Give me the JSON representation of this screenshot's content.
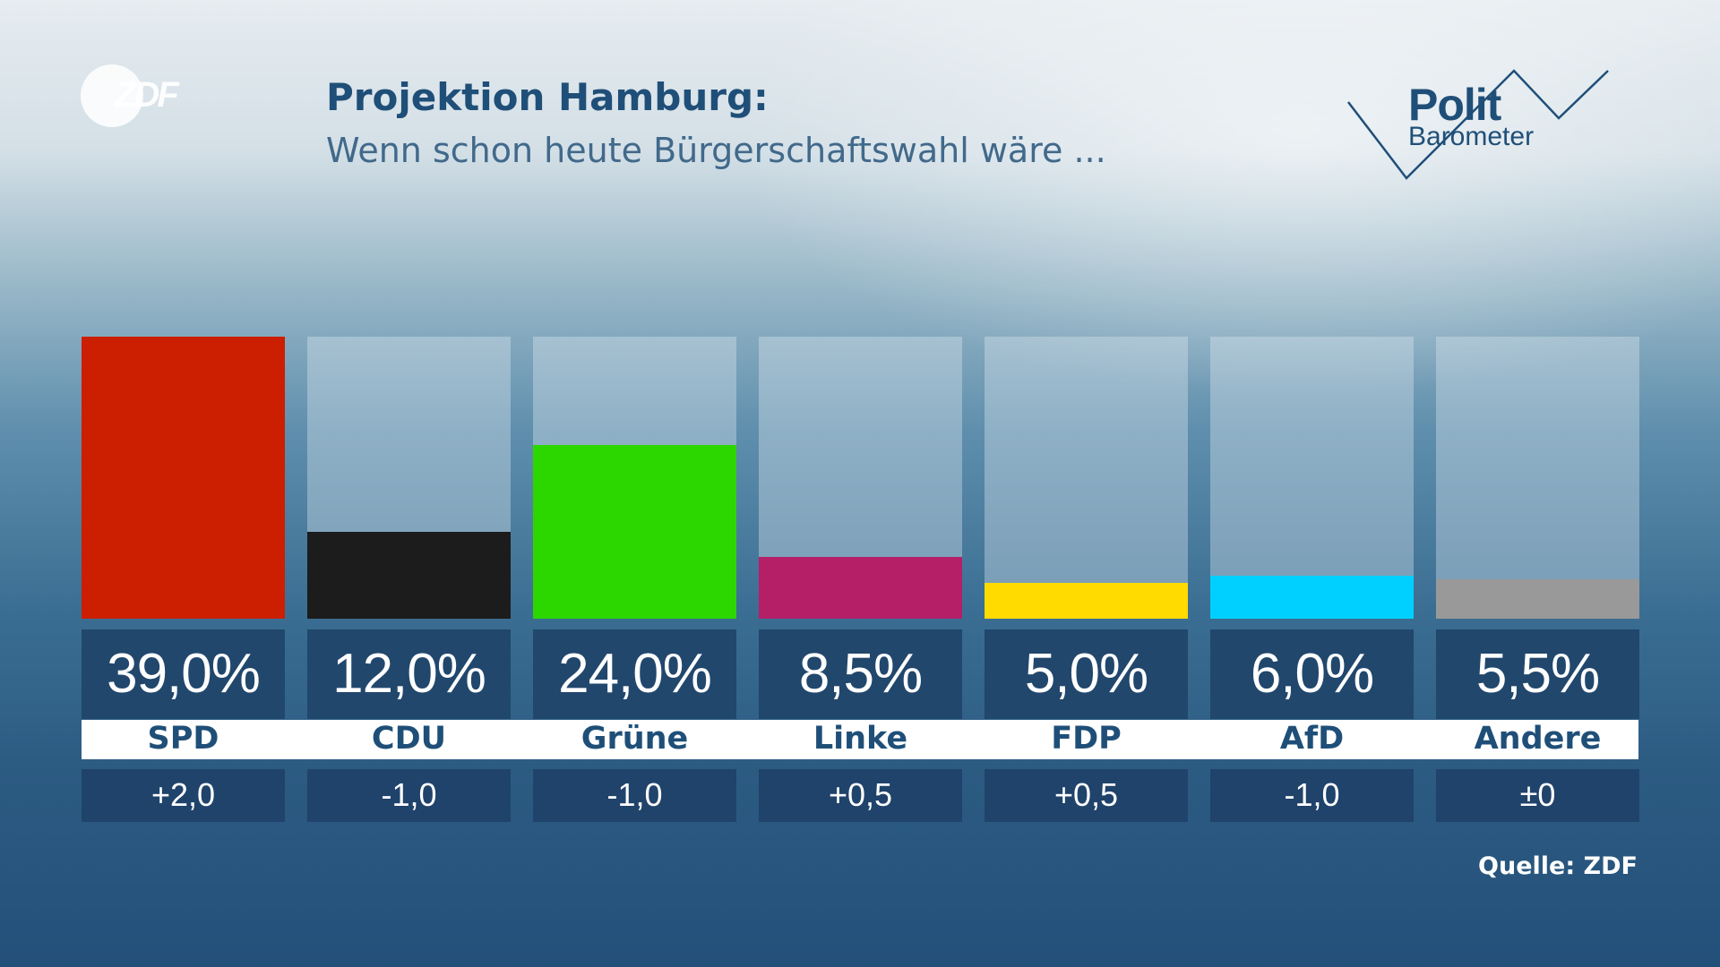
{
  "header": {
    "logo_text": "ZDF",
    "title": "Projektion Hamburg:",
    "subtitle": "Wenn schon heute Bürgerschaftswahl wäre ..."
  },
  "brand": {
    "name_top": "Polit",
    "name_bottom": "Barometer"
  },
  "source": "Quelle: ZDF",
  "chart_data": {
    "type": "bar",
    "title": "Projektion Hamburg:",
    "subtitle": "Wenn schon heute Bürgerschaftswahl wäre ...",
    "xlabel": "",
    "ylabel": "",
    "ylim": [
      0,
      39
    ],
    "categories": [
      "SPD",
      "CDU",
      "Grüne",
      "Linke",
      "FDP",
      "AfD",
      "Andere"
    ],
    "values": [
      39.0,
      12.0,
      24.0,
      8.5,
      5.0,
      6.0,
      5.5
    ],
    "value_labels": [
      "39,0%",
      "12,0%",
      "24,0%",
      "8,5%",
      "5,0%",
      "6,0%",
      "5,5%"
    ],
    "changes": [
      "+2,0",
      "-1,0",
      "-1,0",
      "+0,5",
      "+0,5",
      "-1,0",
      "±0"
    ],
    "colors": [
      "#cc1e00",
      "#1c1c1c",
      "#2cd700",
      "#b41f68",
      "#ffdb00",
      "#00d0ff",
      "#999999"
    ]
  }
}
